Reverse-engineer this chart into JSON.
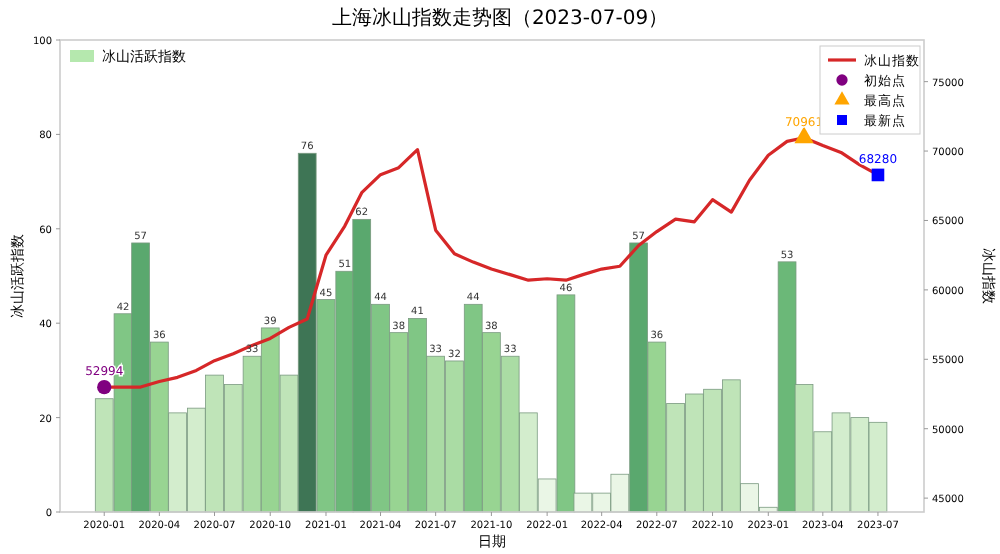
{
  "chart_data": {
    "type": "bar",
    "title": "上海冰山指数走势图（2023-07-09）",
    "xlabel": "日期",
    "ylabel": "冰山活跃指数",
    "y2label": "冰山指数",
    "x": [
      "2020-01",
      "2020-02",
      "2020-03",
      "2020-04",
      "2020-05",
      "2020-06",
      "2020-07",
      "2020-08",
      "2020-09",
      "2020-10",
      "2020-11",
      "2020-12",
      "2021-01",
      "2021-02",
      "2021-03",
      "2021-04",
      "2021-05",
      "2021-06",
      "2021-07",
      "2021-08",
      "2021-09",
      "2021-10",
      "2021-11",
      "2021-12",
      "2022-01",
      "2022-02",
      "2022-03",
      "2022-04",
      "2022-05",
      "2022-06",
      "2022-07",
      "2022-08",
      "2022-09",
      "2022-10",
      "2022-11",
      "2022-12",
      "2023-01",
      "2023-02",
      "2023-03",
      "2023-04",
      "2023-05",
      "2023-06",
      "2023-07"
    ],
    "series": [
      {
        "name": "冰山活跃指数",
        "axis": "y",
        "color": "#b5e8ae",
        "values": [
          24,
          42,
          57,
          36,
          21,
          22,
          29,
          27,
          33,
          39,
          29,
          76,
          45,
          51,
          62,
          44,
          38,
          41,
          33,
          32,
          44,
          38,
          33,
          21,
          7,
          46,
          4,
          4,
          8,
          57,
          36,
          23,
          25,
          26,
          28,
          6,
          1,
          53,
          27,
          17,
          21,
          20,
          19
        ],
        "colors": [
          "#bfe4b8",
          "#80c685",
          "#5aa86e",
          "#98d492",
          "#d3edcd",
          "#d3edcd",
          "#bfe4b8",
          "#bfe4b8",
          "#aadca4",
          "#98d492",
          "#bfe4b8",
          "#3e7555",
          "#80c685",
          "#6bb878",
          "#5aa86e",
          "#80c685",
          "#98d492",
          "#80c685",
          "#aadca4",
          "#aadca4",
          "#80c685",
          "#98d492",
          "#aadca4",
          "#d3edcd",
          "#eaf6e6",
          "#80c685",
          "#eaf6e6",
          "#eaf6e6",
          "#eaf6e6",
          "#5aa86e",
          "#98d492",
          "#bfe4b8",
          "#bfe4b8",
          "#bfe4b8",
          "#bfe4b8",
          "#eaf6e6",
          "#eaf6e6",
          "#6bb878",
          "#bfe4b8",
          "#d3edcd",
          "#d3edcd",
          "#d3edcd",
          "#d3edcd"
        ],
        "value_labels": [
          null,
          "42",
          "57",
          "36",
          null,
          null,
          null,
          null,
          "33",
          "39",
          null,
          "76",
          "45",
          "51",
          "62",
          "44",
          "38",
          "41",
          "33",
          "32",
          "44",
          "38",
          "33",
          null,
          null,
          "46",
          null,
          null,
          null,
          "57",
          "36",
          null,
          null,
          null,
          null,
          null,
          null,
          "53",
          null,
          null,
          null,
          null,
          null
        ]
      },
      {
        "name": "冰山指数",
        "type": "line",
        "axis": "y2",
        "color": "#d62728",
        "marker": "none",
        "line_style": "solid",
        "values": [
          52994,
          53000,
          53000,
          53400,
          53700,
          54200,
          54900,
          55400,
          56000,
          56500,
          57300,
          57900,
          62500,
          64600,
          67000,
          68300,
          68800,
          70100,
          64300,
          62600,
          62000,
          61500,
          61100,
          60700,
          60800,
          60700,
          61100,
          61500,
          61700,
          63200,
          64200,
          65100,
          64900,
          66500,
          65600,
          67900,
          69700,
          70700,
          70961,
          70400,
          69900,
          69000,
          68280
        ]
      },
      {
        "name": "初始点",
        "type": "scatter",
        "axis": "y2",
        "color": "#800080",
        "marker": "circle",
        "x": [
          "2020-01"
        ],
        "values": [
          52994
        ],
        "value_labels": [
          "52994"
        ]
      },
      {
        "name": "最高点",
        "type": "scatter",
        "axis": "y2",
        "color": "#ffa500",
        "marker": "triangle",
        "x": [
          "2023-03"
        ],
        "values": [
          70961
        ],
        "value_labels": [
          "70961"
        ]
      },
      {
        "name": "最新点",
        "type": "scatter",
        "axis": "y2",
        "color": "#0000ff",
        "marker": "square",
        "x": [
          "2023-07"
        ],
        "values": [
          68280
        ],
        "value_labels": [
          "68280"
        ]
      }
    ],
    "xlim": [
      "2019-10-20",
      "2023-09-15"
    ],
    "xticks": [
      "2020-01",
      "2020-04",
      "2020-07",
      "2020-10",
      "2021-01",
      "2021-04",
      "2021-07",
      "2021-10",
      "2022-01",
      "2022-04",
      "2022-07",
      "2022-10",
      "2023-01",
      "2023-04",
      "2023-07"
    ],
    "ylim": [
      0,
      100
    ],
    "yticks": [
      0,
      20,
      40,
      60,
      80,
      100
    ],
    "y2lim": [
      44000,
      78000
    ],
    "y2ticks": [
      45000,
      50000,
      55000,
      60000,
      65000,
      70000,
      75000
    ],
    "legend": "top",
    "grid": false
  }
}
